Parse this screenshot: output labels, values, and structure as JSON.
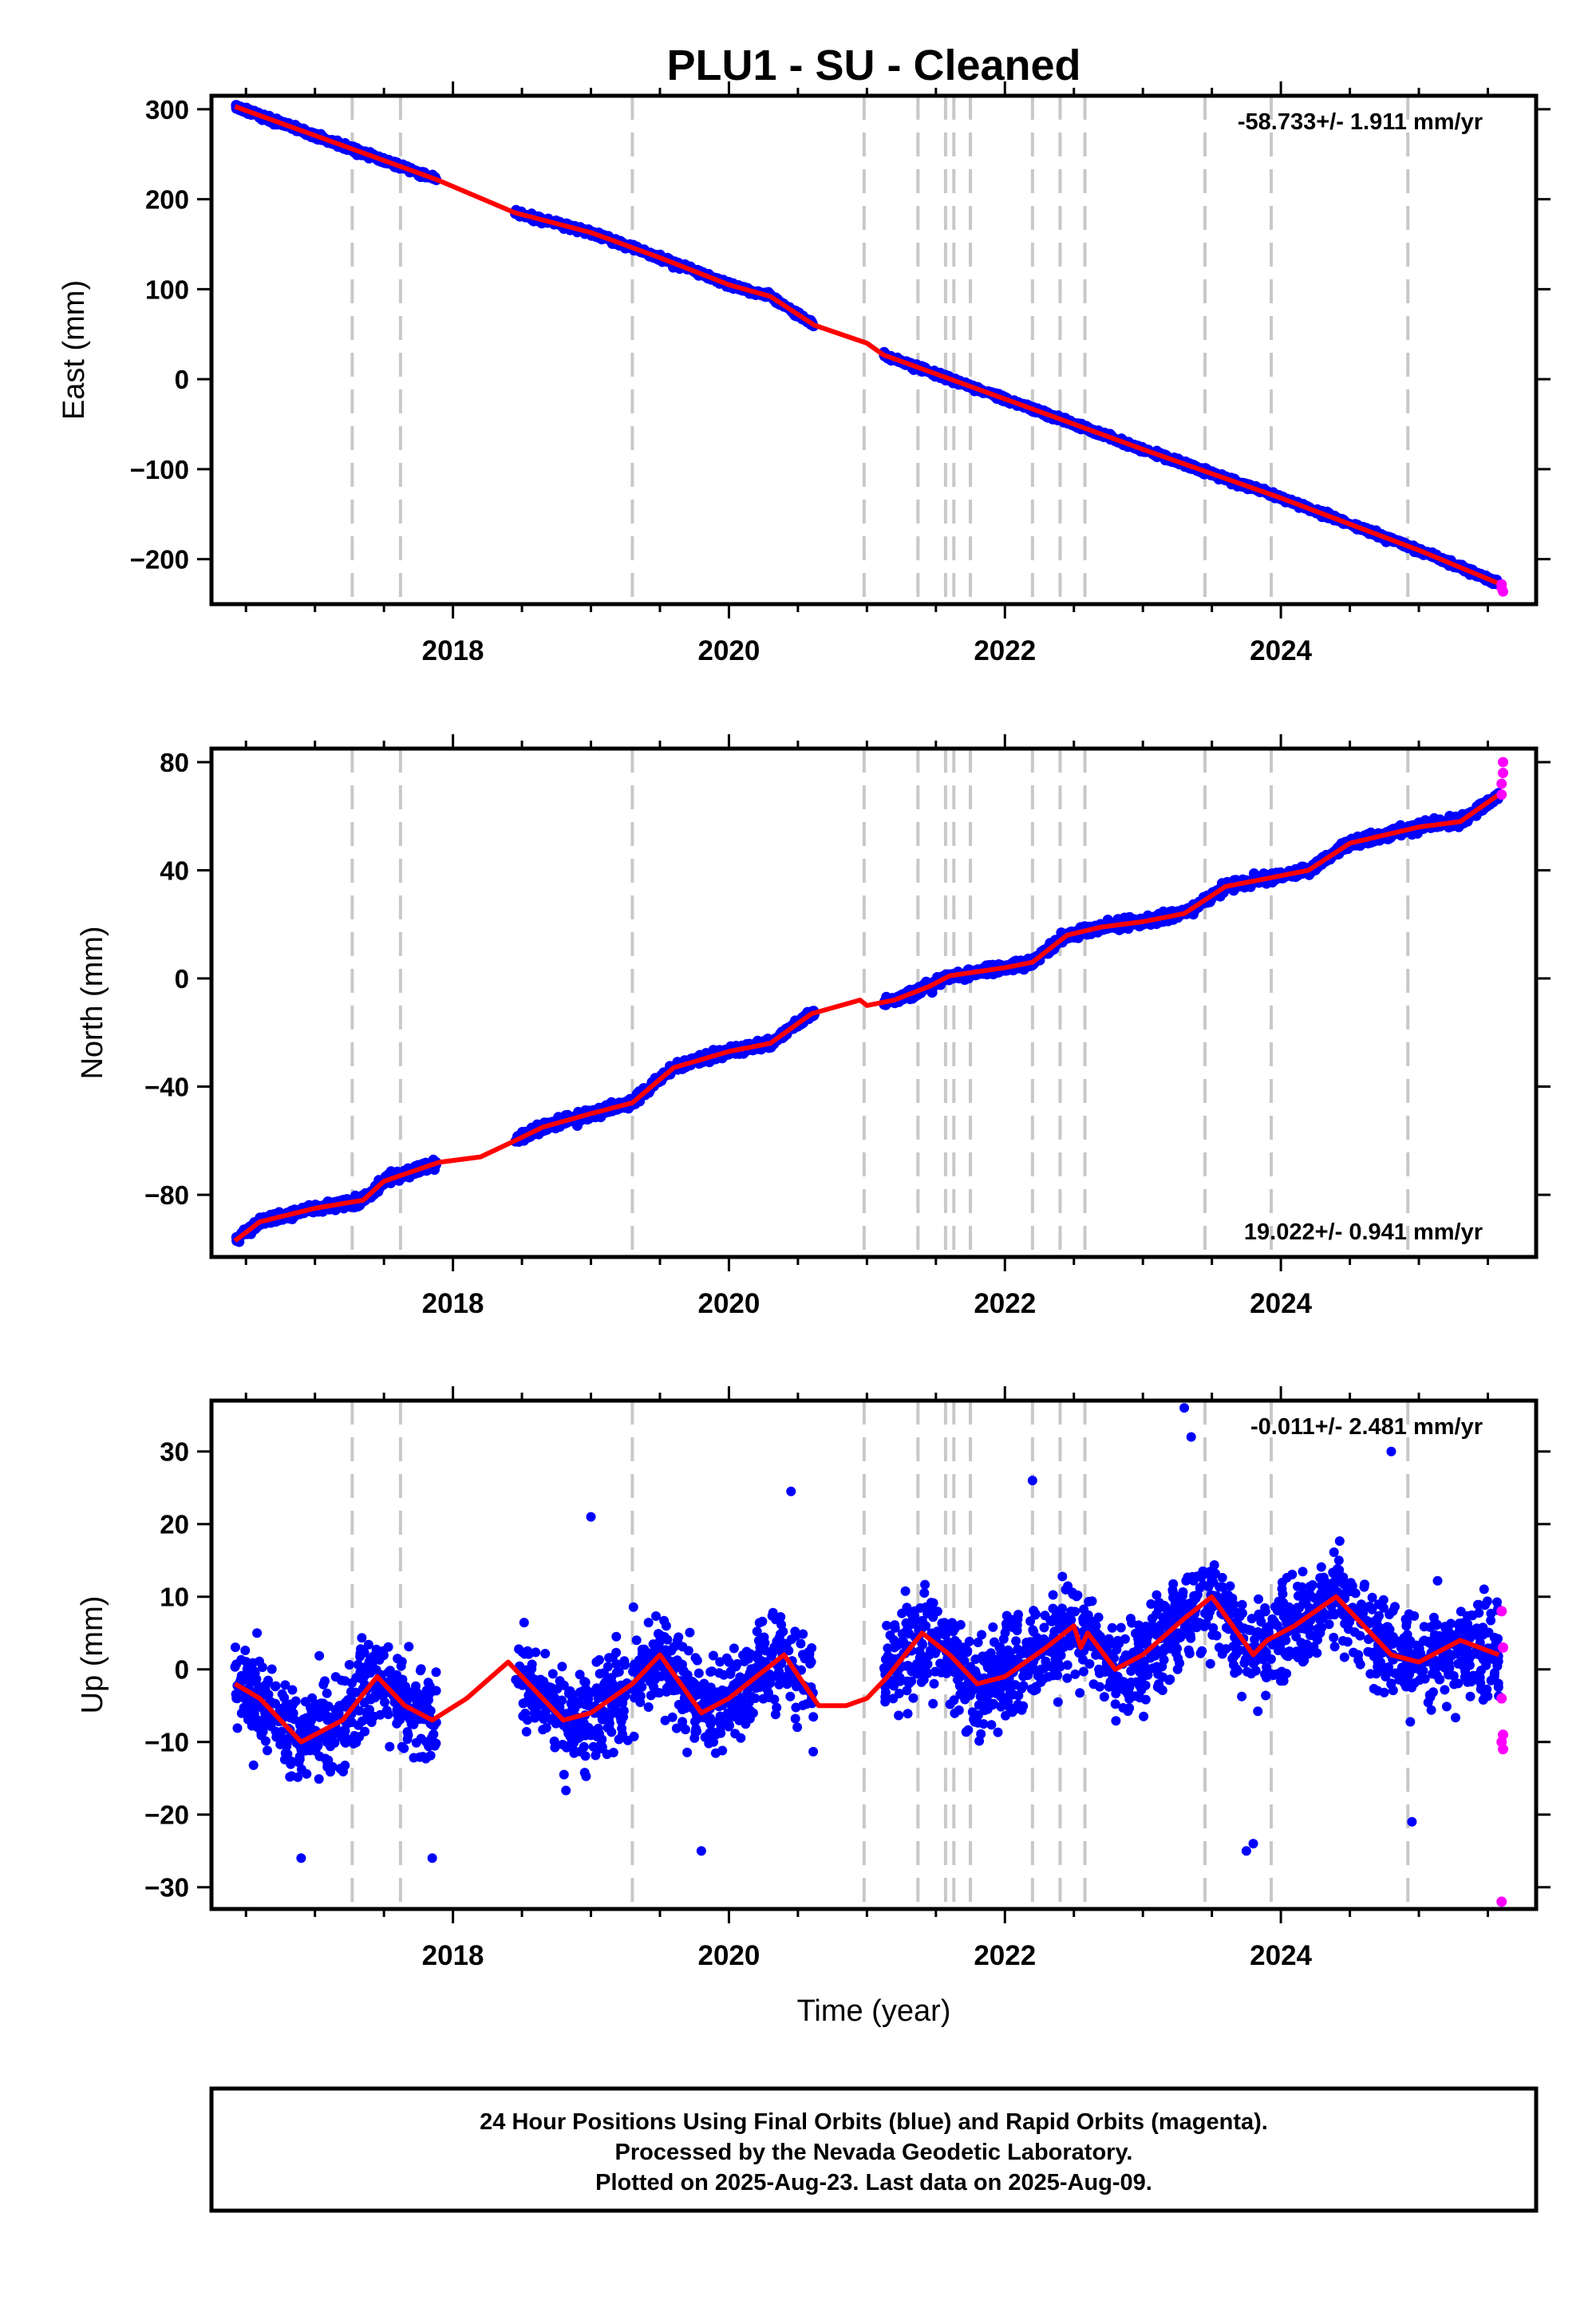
{
  "title": "PLU1  - SU - Cleaned",
  "colors": {
    "final_orbits": "#0000ff",
    "rapid_orbits": "#ff00ff",
    "model": "#ff0000",
    "event_lines": "#c8c8c8"
  },
  "chart_data": [
    {
      "type": "scatter",
      "component": "east",
      "ylabel": "East (mm)",
      "xlabel": "",
      "xlim": [
        2016.25,
        2025.85
      ],
      "ylim": [
        -250,
        315
      ],
      "yticks": [
        -200,
        -100,
        0,
        100,
        200,
        300
      ],
      "xticks": [
        2018,
        2020,
        2022,
        2024
      ],
      "rate_text": "-58.733+/- 1.911 mm/yr",
      "rate_position": "top-right",
      "data_segments": [
        [
          2016.42,
          2017.88
        ],
        [
          2018.45,
          2020.62
        ],
        [
          2021.12,
          2025.58
        ]
      ],
      "noise_mm": 2.8,
      "series": [
        {
          "name": "",
          "style": "model-line",
          "color": "#ff0000",
          "x": [
            2016.42,
            2017.88,
            2018.45,
            2019.0,
            2019.5,
            2020.0,
            2020.3,
            2020.62,
            2021.0,
            2021.12,
            2022.0,
            2023.0,
            2024.0,
            2025.0,
            2025.58
          ],
          "y": [
            303,
            222,
            185,
            163,
            135,
            105,
            92,
            60,
            40,
            27,
            -22,
            -78,
            -132,
            -190,
            -227
          ]
        },
        {
          "name": "",
          "style": "rapid-points",
          "color": "#ff00ff",
          "x": [
            2025.6,
            2025.6,
            2025.61
          ],
          "y": [
            -228,
            -232,
            -236
          ]
        }
      ]
    },
    {
      "type": "scatter",
      "component": "north",
      "ylabel": "North (mm)",
      "xlabel": "",
      "xlim": [
        2016.25,
        2025.85
      ],
      "ylim": [
        -103,
        85
      ],
      "yticks": [
        -80,
        -40,
        0,
        40,
        80
      ],
      "xticks": [
        2018,
        2020,
        2022,
        2024
      ],
      "rate_text": "19.022+/- 0.941 mm/yr",
      "rate_position": "bottom-right",
      "data_segments": [
        [
          2016.42,
          2017.88
        ],
        [
          2018.45,
          2020.62
        ],
        [
          2021.12,
          2025.58
        ]
      ],
      "noise_mm": 1.6,
      "series": [
        {
          "name": "",
          "style": "model-line",
          "color": "#ff0000",
          "x": [
            2016.42,
            2016.6,
            2017.0,
            2017.35,
            2017.5,
            2017.9,
            2018.2,
            2018.45,
            2018.65,
            2019.0,
            2019.3,
            2019.6,
            2020.0,
            2020.3,
            2020.6,
            2020.95,
            2021.0,
            2021.2,
            2021.45,
            2021.6,
            2022.0,
            2022.2,
            2022.45,
            2022.7,
            2023.0,
            2023.3,
            2023.6,
            2024.0,
            2024.2,
            2024.5,
            2025.0,
            2025.3,
            2025.58
          ],
          "y": [
            -97,
            -90,
            -85,
            -82,
            -75,
            -68,
            -66,
            -60,
            -55,
            -50,
            -46,
            -33,
            -27,
            -24,
            -13,
            -8,
            -10,
            -8,
            -3,
            1,
            4,
            6,
            16,
            19,
            21,
            24,
            34,
            38,
            40,
            50,
            56,
            58,
            68
          ]
        },
        {
          "name": "",
          "style": "rapid-points",
          "color": "#ff00ff",
          "x": [
            2025.6,
            2025.6,
            2025.61,
            2025.61
          ],
          "y": [
            68,
            72,
            76,
            80
          ]
        }
      ]
    },
    {
      "type": "scatter",
      "component": "up",
      "ylabel": "Up (mm)",
      "xlabel": "Time (year)",
      "xlim": [
        2016.25,
        2025.85
      ],
      "ylim": [
        -33,
        37
      ],
      "yticks": [
        -30,
        -20,
        -10,
        0,
        10,
        20,
        30
      ],
      "xticks": [
        2018,
        2020,
        2022,
        2024
      ],
      "rate_text": "-0.011+/- 2.481 mm/yr",
      "rate_position": "top-right",
      "data_segments": [
        [
          2016.42,
          2017.88
        ],
        [
          2018.45,
          2020.62
        ],
        [
          2021.12,
          2025.58
        ]
      ],
      "noise_mm": 6.0,
      "series": [
        {
          "name": "",
          "style": "model-line",
          "color": "#ff0000",
          "x": [
            2016.42,
            2016.6,
            2016.9,
            2017.2,
            2017.45,
            2017.65,
            2017.85,
            2018.1,
            2018.4,
            2018.8,
            2019.0,
            2019.3,
            2019.5,
            2019.8,
            2020.0,
            2020.4,
            2020.65,
            2020.85,
            2021.0,
            2021.15,
            2021.4,
            2021.6,
            2021.8,
            2022.0,
            2022.3,
            2022.5,
            2022.55,
            2022.6,
            2022.8,
            2023.0,
            2023.3,
            2023.5,
            2023.8,
            2023.9,
            2024.1,
            2024.4,
            2024.6,
            2024.8,
            2025.0,
            2025.3,
            2025.58
          ],
          "y": [
            -2,
            -4,
            -10,
            -7,
            -1,
            -5,
            -7,
            -4,
            1,
            -7,
            -6,
            -2,
            2,
            -6,
            -4,
            2,
            -5,
            -5,
            -4,
            -1,
            5,
            2,
            -2,
            -1,
            3,
            6,
            3,
            5,
            0,
            2,
            7,
            10,
            2,
            4,
            6,
            10,
            6,
            2,
            1,
            4,
            2
          ]
        },
        {
          "name": "",
          "style": "rapid-points",
          "color": "#ff00ff",
          "x": [
            2025.6,
            2025.61,
            2025.6,
            2025.61,
            2025.6,
            2025.61,
            2025.6
          ],
          "y": [
            8,
            3,
            -4,
            -9,
            -10,
            -11,
            -32
          ]
        },
        {
          "name": "",
          "style": "outlier-points",
          "color": "#0000ff",
          "x": [
            2023.3,
            2024.8,
            2023.35,
            2020.45,
            2022.2,
            2019.0,
            2016.9,
            2019.8,
            2023.8,
            2023.75,
            2017.85,
            2024.95
          ],
          "y": [
            36,
            30,
            32,
            24.5,
            26,
            21,
            -26,
            -25,
            -24,
            -25,
            -26,
            -21
          ]
        }
      ]
    }
  ],
  "event_lines": [
    2017.27,
    2017.62,
    2019.3,
    2020.98,
    2021.37,
    2021.57,
    2021.63,
    2021.75,
    2022.2,
    2022.4,
    2022.58,
    2023.45,
    2023.93,
    2024.92
  ],
  "caption": {
    "line1": "24 Hour Positions Using Final Orbits (blue) and Rapid Orbits (magenta).",
    "line2": "Processed by the Nevada Geodetic Laboratory.",
    "line3": "Plotted on 2025-Aug-23. Last data on 2025-Aug-09."
  }
}
